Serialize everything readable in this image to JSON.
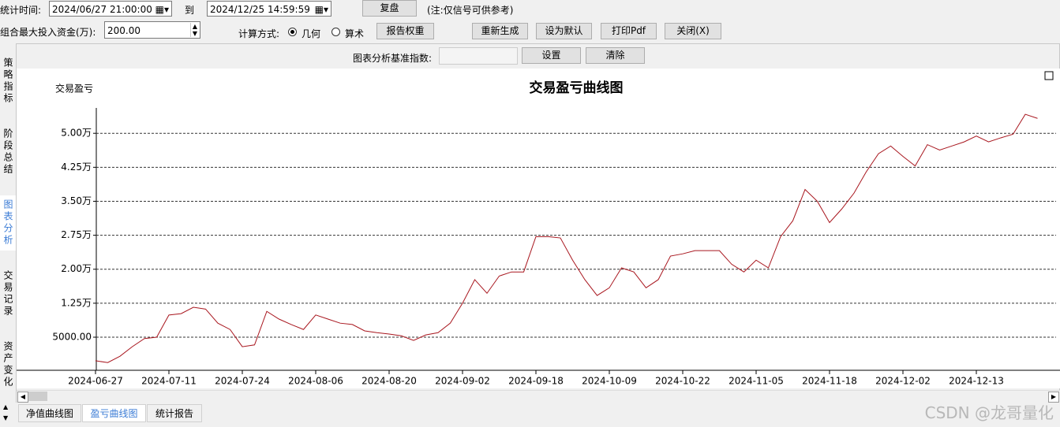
{
  "toolbar": {
    "time_label": "统计时间:",
    "start": "2024/06/27 21:00:00",
    "to": "到",
    "end": "2024/12/25 14:59:59",
    "replay": "复盘",
    "note": "(注:仅信号可供参考)",
    "capital_label": "组合最大投入资金(万):",
    "capital": "200.00",
    "method_label": "计算方式:",
    "method_options": [
      "几何",
      "算术"
    ],
    "buttons": [
      "报告权重",
      "重新生成",
      "设为默认",
      "打印Pdf",
      "关闭(X)"
    ]
  },
  "side_tabs": [
    "策略指标",
    "阶段总结",
    "图表分析",
    "交易记录",
    "资产变化"
  ],
  "benchmark": {
    "label": "图表分析基准指数:",
    "buttons": [
      "设置",
      "清除"
    ]
  },
  "chart_data": {
    "type": "line",
    "title": "交易盈亏曲线图",
    "y_label": "交易盈亏",
    "color": "#a8161e",
    "categories": [
      "2024-06-27",
      null,
      null,
      null,
      null,
      null,
      "2024-07-11",
      null,
      null,
      null,
      null,
      null,
      "2024-07-24",
      null,
      null,
      null,
      null,
      null,
      "2024-08-06",
      null,
      null,
      null,
      null,
      null,
      "2024-08-20",
      null,
      null,
      null,
      null,
      null,
      "2024-09-02",
      null,
      null,
      null,
      null,
      null,
      "2024-09-18",
      null,
      null,
      null,
      null,
      null,
      "2024-10-09",
      null,
      null,
      null,
      null,
      null,
      "2024-10-22",
      null,
      null,
      null,
      null,
      null,
      "2024-11-05",
      null,
      null,
      null,
      null,
      null,
      "2024-11-18",
      null,
      null,
      null,
      null,
      null,
      "2024-12-02",
      null,
      null,
      null,
      null,
      null,
      "2024-12-13",
      null,
      null,
      null,
      null,
      null
    ],
    "values": [
      -200,
      -600,
      800,
      2900,
      4700,
      5000,
      9900,
      10200,
      11600,
      11200,
      8100,
      6700,
      2900,
      3300,
      10700,
      9000,
      7800,
      6700,
      9900,
      9000,
      8100,
      7800,
      6400,
      6000,
      5700,
      5300,
      4300,
      5500,
      6000,
      8100,
      12500,
      17700,
      14700,
      18500,
      19400,
      19400,
      27200,
      27200,
      26900,
      22000,
      17700,
      14200,
      15900,
      20300,
      19400,
      15900,
      17700,
      22900,
      23400,
      24100,
      24100,
      24100,
      21100,
      19400,
      22000,
      20300,
      27200,
      30700,
      37600,
      35000,
      30300,
      33300,
      36800,
      41500,
      45500,
      47200,
      44900,
      42800,
      47500,
      46300,
      47200,
      48100,
      49400,
      48100,
      49000,
      49800,
      54200,
      53300
    ],
    "ylim": [
      -2300,
      55600
    ],
    "yticks": [
      {
        "value": 5000,
        "label": "5000.00"
      },
      {
        "value": 12500,
        "label": "1.25万"
      },
      {
        "value": 20000,
        "label": "2.00万"
      },
      {
        "value": 27500,
        "label": "2.75万"
      },
      {
        "value": 35000,
        "label": "3.50万"
      },
      {
        "value": 42500,
        "label": "4.25万"
      },
      {
        "value": 50000,
        "label": "5.00万"
      }
    ],
    "grid": true
  },
  "bottom_tabs": [
    "净值曲线图",
    "盈亏曲线图",
    "统计报告"
  ],
  "watermark": "CSDN @龙哥量化"
}
